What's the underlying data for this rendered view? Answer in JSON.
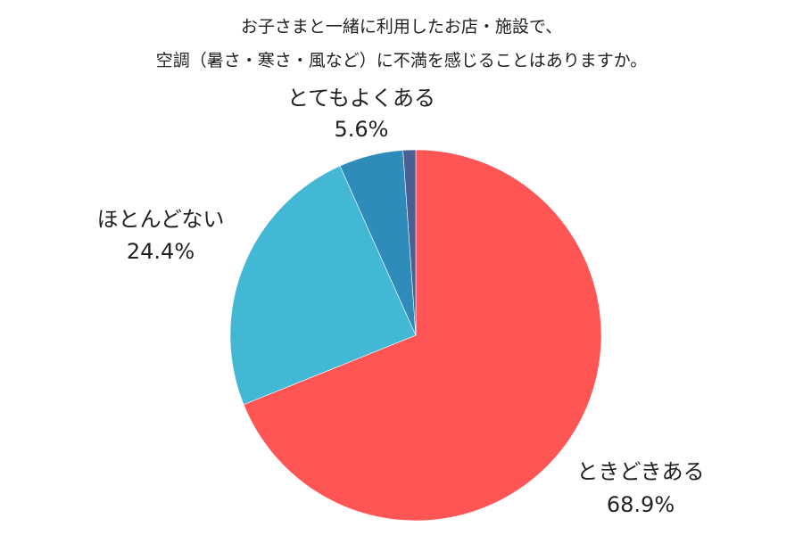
{
  "chart_data": {
    "type": "pie",
    "title_lines": [
      "お子さまと一緒に利用したお店・施設で、",
      "空調（暑さ・寒さ・風など）に不満を感じることはありますか。"
    ],
    "start_angle_deg": 0,
    "direction": "clockwise",
    "legend": "none",
    "slices": [
      {
        "label": "ときどきある",
        "value": 68.9,
        "value_label": "68.9%",
        "color": "#FF5555"
      },
      {
        "label": "ほとんどない",
        "value": 24.4,
        "value_label": "24.4%",
        "color": "#42B8D4"
      },
      {
        "label": "とてもよくある",
        "value": 5.6,
        "value_label": "5.6%",
        "color": "#2E8BBA"
      },
      {
        "label": "",
        "value": 1.1,
        "value_label": "",
        "color": "#4A5F94"
      }
    ]
  }
}
